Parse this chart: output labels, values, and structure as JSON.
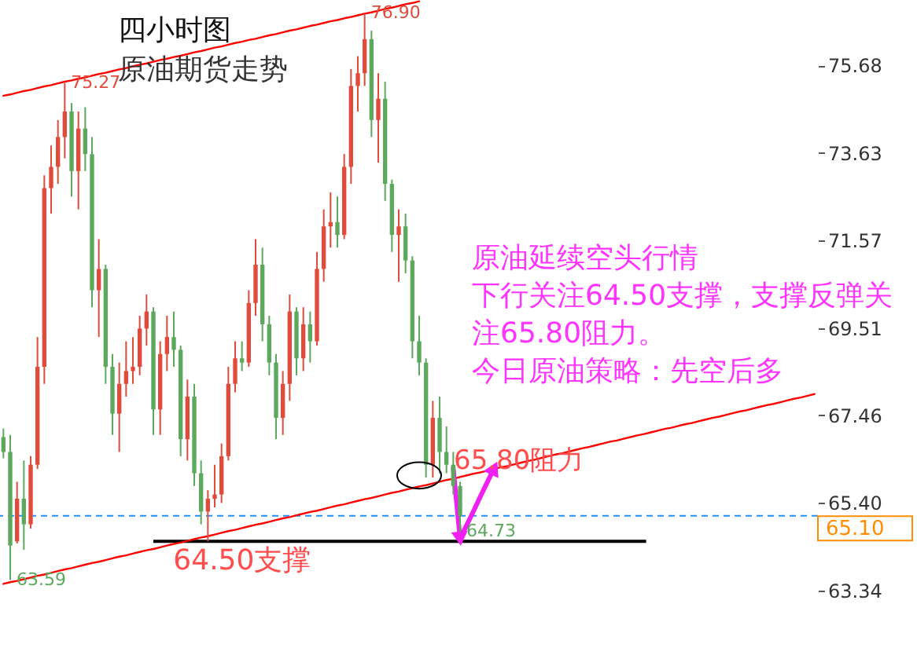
{
  "chart_data": {
    "type": "candlestick",
    "title": "四小时图",
    "subtitle": "原油期货走势",
    "categories": [
      null,
      null,
      null,
      null,
      null,
      null,
      null,
      null,
      null,
      null,
      null,
      null,
      null,
      null,
      null,
      null,
      null,
      null,
      null,
      null,
      null,
      null,
      null,
      null,
      null,
      null,
      null,
      null,
      null,
      null,
      null,
      null,
      null,
      null,
      null,
      null,
      null,
      null,
      null,
      null,
      null,
      null,
      null,
      null,
      null,
      null,
      null,
      null,
      null,
      null,
      null,
      null,
      null,
      null,
      null,
      null,
      null,
      null,
      null,
      null,
      null,
      null,
      null,
      null,
      null,
      null,
      null,
      null,
      null,
      null,
      null,
      null,
      null,
      null,
      null,
      null,
      null,
      null,
      null,
      null,
      null,
      null,
      null,
      null,
      null,
      null,
      null,
      null,
      null,
      null,
      null,
      null,
      null,
      null,
      null,
      null,
      null,
      null,
      null,
      null,
      null,
      null,
      null,
      null,
      null,
      null,
      null,
      null,
      null,
      null,
      null,
      null,
      null,
      null,
      null,
      null,
      null,
      null,
      null,
      null
    ],
    "ohlc": [
      [
        66.95,
        67.15,
        66.45,
        66.6
      ],
      [
        66.6,
        67.0,
        63.59,
        64.4
      ],
      [
        64.5,
        65.9,
        64.45,
        65.5
      ],
      [
        65.5,
        66.4,
        64.3,
        64.9
      ],
      [
        64.9,
        66.5,
        64.8,
        66.3
      ],
      [
        66.3,
        69.3,
        66.2,
        68.6
      ],
      [
        68.6,
        73.1,
        68.2,
        72.8
      ],
      [
        72.8,
        73.8,
        72.2,
        73.3
      ],
      [
        73.3,
        74.4,
        72.9,
        74.0
      ],
      [
        74.0,
        75.27,
        73.5,
        74.6
      ],
      [
        74.6,
        74.8,
        72.6,
        73.2
      ],
      [
        73.2,
        74.6,
        72.3,
        74.2
      ],
      [
        74.2,
        74.7,
        73.2,
        73.6
      ],
      [
        73.6,
        74.0,
        70.0,
        70.4
      ],
      [
        70.4,
        71.6,
        69.3,
        70.9
      ],
      [
        70.9,
        71.0,
        68.2,
        68.6
      ],
      [
        68.6,
        68.9,
        67.0,
        67.5
      ],
      [
        67.5,
        68.7,
        66.6,
        68.2
      ],
      [
        68.2,
        69.2,
        67.9,
        68.5
      ],
      [
        68.5,
        69.3,
        68.2,
        68.6
      ],
      [
        68.6,
        69.8,
        68.4,
        69.5
      ],
      [
        69.5,
        70.3,
        69.1,
        69.9
      ],
      [
        69.9,
        70.0,
        67.0,
        67.6
      ],
      [
        67.6,
        69.2,
        67.0,
        68.9
      ],
      [
        68.9,
        69.8,
        68.5,
        69.3
      ],
      [
        69.3,
        69.9,
        68.6,
        69.0
      ],
      [
        69.0,
        69.1,
        66.5,
        66.9
      ],
      [
        66.9,
        68.3,
        66.4,
        67.9
      ],
      [
        67.9,
        68.2,
        65.8,
        66.1
      ],
      [
        66.1,
        66.4,
        64.9,
        65.2
      ],
      [
        65.2,
        65.7,
        64.5,
        65.5
      ],
      [
        65.5,
        66.3,
        65.3,
        65.6
      ],
      [
        65.6,
        66.8,
        65.4,
        66.5
      ],
      [
        66.5,
        68.6,
        66.4,
        68.2
      ],
      [
        68.2,
        69.2,
        68.0,
        68.8
      ],
      [
        68.8,
        69.2,
        68.5,
        68.7
      ],
      [
        68.7,
        70.4,
        68.6,
        70.1
      ],
      [
        70.1,
        71.6,
        69.8,
        71.0
      ],
      [
        71.0,
        71.4,
        69.2,
        69.6
      ],
      [
        69.6,
        69.8,
        68.4,
        68.7
      ],
      [
        68.7,
        68.9,
        66.9,
        67.4
      ],
      [
        67.4,
        68.5,
        67.0,
        68.2
      ],
      [
        68.2,
        70.3,
        67.8,
        69.9
      ],
      [
        69.9,
        70.0,
        68.4,
        68.8
      ],
      [
        68.8,
        70.0,
        68.5,
        69.6
      ],
      [
        69.6,
        69.9,
        68.7,
        69.2
      ],
      [
        69.2,
        71.3,
        69.1,
        70.9
      ],
      [
        70.9,
        72.3,
        70.6,
        71.9
      ],
      [
        71.9,
        72.7,
        71.4,
        72.0
      ],
      [
        72.0,
        72.6,
        71.4,
        71.7
      ],
      [
        71.7,
        73.6,
        71.6,
        73.3
      ],
      [
        73.3,
        75.6,
        72.9,
        75.2
      ],
      [
        75.2,
        75.9,
        74.6,
        75.5
      ],
      [
        75.5,
        76.9,
        75.2,
        76.3
      ],
      [
        76.3,
        76.5,
        74.0,
        74.4
      ],
      [
        74.4,
        75.5,
        73.4,
        74.9
      ],
      [
        74.9,
        75.3,
        72.5,
        72.9
      ],
      [
        72.9,
        73.0,
        71.3,
        71.7
      ],
      [
        71.7,
        72.3,
        70.6,
        71.9
      ],
      [
        71.9,
        72.2,
        70.8,
        71.1
      ],
      [
        71.1,
        71.2,
        68.8,
        69.2
      ],
      [
        69.2,
        69.8,
        68.4,
        68.7
      ],
      [
        68.7,
        68.8,
        66.0,
        66.3
      ],
      [
        66.3,
        67.8,
        66.0,
        67.4
      ],
      [
        67.4,
        67.9,
        66.1,
        66.6
      ],
      [
        66.6,
        67.2,
        66.1,
        66.3
      ],
      [
        66.3,
        66.6,
        65.6,
        65.8
      ],
      [
        65.8,
        65.9,
        64.73,
        65.1
      ],
      null,
      null,
      null,
      null,
      null,
      null,
      null,
      null,
      null,
      null,
      null,
      null,
      null,
      null,
      null,
      null,
      null,
      null,
      null,
      null,
      null,
      null,
      null,
      null,
      null,
      null,
      null,
      null,
      null,
      null,
      null,
      null,
      null,
      null,
      null,
      null,
      null,
      null,
      null,
      null,
      null,
      null,
      null,
      null,
      null,
      null,
      null,
      null,
      null,
      null,
      null,
      null
    ],
    "colors": [
      "#5ca85c",
      "#5ca85c",
      "#e04b3c",
      "#5ca85c",
      "#e04b3c",
      "#e04b3c",
      "#e04b3c",
      "#e04b3c",
      "#e04b3c",
      "#e04b3c",
      "#5ca85c",
      "#e04b3c",
      "#5ca85c",
      "#5ca85c",
      "#e04b3c",
      "#5ca85c",
      "#5ca85c",
      "#e04b3c",
      "#e04b3c",
      "#e04b3c",
      "#e04b3c",
      "#e04b3c",
      "#5ca85c",
      "#e04b3c",
      "#e04b3c",
      "#5ca85c",
      "#5ca85c",
      "#e04b3c",
      "#5ca85c",
      "#5ca85c",
      "#e04b3c",
      "#e04b3c",
      "#e04b3c",
      "#e04b3c",
      "#e04b3c",
      "#5ca85c",
      "#e04b3c",
      "#e04b3c",
      "#5ca85c",
      "#5ca85c",
      "#5ca85c",
      "#e04b3c",
      "#e04b3c",
      "#5ca85c",
      "#e04b3c",
      "#5ca85c",
      "#e04b3c",
      "#e04b3c",
      "#e04b3c",
      "#5ca85c",
      "#e04b3c",
      "#e04b3c",
      "#e04b3c",
      "#e04b3c",
      "#5ca85c",
      "#e04b3c",
      "#5ca85c",
      "#5ca85c",
      "#e04b3c",
      "#5ca85c",
      "#5ca85c",
      "#5ca85c",
      "#5ca85c",
      "#e04b3c",
      "#5ca85c",
      "#5ca85c",
      "#5ca85c",
      "#5ca85c",
      null,
      null,
      null,
      null,
      null,
      null,
      null,
      null,
      null,
      null,
      null,
      null,
      null,
      null,
      null,
      null,
      null,
      null,
      null,
      null,
      null,
      null,
      null,
      null,
      null,
      null,
      null,
      null,
      null,
      null,
      null,
      null,
      null,
      null,
      null,
      null,
      null,
      null,
      null,
      null,
      null,
      null,
      null,
      null,
      null,
      null,
      null,
      null,
      null,
      null,
      null,
      null
    ],
    "value_labels": [
      null,
      "63.59",
      null,
      null,
      null,
      null,
      null,
      null,
      null,
      "75.27",
      null,
      null,
      null,
      null,
      null,
      null,
      null,
      null,
      null,
      null,
      null,
      null,
      null,
      null,
      null,
      null,
      null,
      null,
      null,
      null,
      null,
      null,
      null,
      null,
      null,
      null,
      null,
      null,
      null,
      null,
      null,
      null,
      null,
      null,
      null,
      null,
      null,
      null,
      null,
      null,
      null,
      null,
      null,
      "76.90",
      null,
      null,
      null,
      null,
      null,
      null,
      null,
      null,
      null,
      null,
      null,
      null,
      null,
      "64.73",
      null,
      null,
      null,
      null,
      null,
      null,
      null,
      null,
      null,
      null,
      null,
      null,
      null,
      null,
      null,
      null,
      null,
      null,
      null,
      null,
      null,
      null,
      null,
      null,
      null,
      null,
      null,
      null,
      null,
      null,
      null,
      null,
      null,
      null,
      null,
      null,
      null,
      null,
      null,
      null,
      null,
      null,
      null,
      null,
      null,
      null,
      null,
      null,
      null,
      null,
      null,
      null
    ],
    "series": [
      {
        "type": "line",
        "color": "#ff0000",
        "values": [
          74.97,
          75.0,
          75.04,
          75.08,
          75.11,
          75.15,
          75.19,
          75.22,
          75.26,
          75.3,
          75.33,
          75.37,
          75.4,
          75.44,
          75.48,
          75.51,
          75.55,
          75.59,
          75.62,
          75.66,
          75.7,
          75.73,
          75.77,
          75.81,
          75.84,
          75.88,
          75.91,
          75.95,
          75.99,
          76.02,
          76.06,
          76.1,
          76.13,
          76.17,
          76.21,
          76.24,
          76.28,
          76.31,
          76.35,
          76.39,
          76.42,
          76.46,
          76.5,
          76.53,
          76.57,
          76.61,
          76.64,
          76.68,
          76.72,
          76.75,
          76.79,
          76.82,
          76.86,
          76.9,
          76.93,
          76.97,
          77.01,
          77.04,
          77.08,
          77.12,
          77.15,
          77.19,
          null,
          null,
          null,
          null,
          null,
          null,
          null,
          null,
          null,
          null,
          null,
          null,
          null,
          null,
          null,
          null,
          null,
          null,
          null,
          null,
          null,
          null,
          null,
          null,
          null,
          null,
          null,
          null,
          null,
          null,
          null,
          null,
          null,
          null,
          null,
          null,
          null,
          null,
          null,
          null,
          null,
          null,
          null,
          null,
          null,
          null,
          null,
          null,
          null,
          null,
          null,
          null,
          null,
          null,
          null,
          null,
          null,
          null
        ]
      },
      {
        "type": "line",
        "color": "#ff0000",
        "values": [
          63.5,
          63.54,
          63.57,
          63.61,
          63.65,
          63.69,
          63.72,
          63.76,
          63.8,
          63.84,
          63.87,
          63.91,
          63.95,
          63.99,
          64.02,
          64.06,
          64.1,
          64.14,
          64.17,
          64.21,
          64.25,
          64.29,
          64.32,
          64.36,
          64.4,
          64.44,
          64.47,
          64.51,
          64.55,
          64.59,
          64.62,
          64.66,
          64.7,
          64.74,
          64.77,
          64.81,
          64.85,
          64.89,
          64.92,
          64.96,
          65.0,
          65.04,
          65.07,
          65.11,
          65.15,
          65.19,
          65.22,
          65.26,
          65.3,
          65.34,
          65.37,
          65.41,
          65.45,
          65.49,
          65.52,
          65.56,
          65.6,
          65.64,
          65.67,
          65.71,
          65.75,
          65.79,
          65.82,
          65.86,
          65.9,
          65.94,
          65.97,
          66.01,
          66.05,
          66.09,
          66.12,
          66.16,
          66.2,
          66.24,
          66.27,
          66.31,
          66.35,
          66.39,
          66.42,
          66.46,
          66.5,
          66.54,
          66.57,
          66.61,
          66.65,
          66.69,
          66.72,
          66.76,
          66.8,
          66.84,
          66.87,
          66.91,
          66.95,
          66.99,
          67.02,
          67.06,
          67.1,
          67.14,
          67.17,
          67.21,
          67.25,
          67.28,
          67.32,
          67.36,
          67.4,
          67.43,
          67.47,
          67.51,
          67.55,
          67.58,
          67.62,
          67.66,
          67.7,
          67.73,
          67.77,
          67.81,
          67.85,
          67.88,
          67.92,
          67.96
        ]
      },
      {
        "type": "line",
        "color": "#f020f0",
        "values": [
          null,
          null,
          null,
          null,
          null,
          null,
          null,
          null,
          null,
          null,
          null,
          null,
          null,
          null,
          null,
          null,
          null,
          null,
          null,
          null,
          null,
          null,
          null,
          null,
          null,
          null,
          null,
          null,
          null,
          null,
          null,
          null,
          null,
          null,
          null,
          null,
          null,
          null,
          null,
          null,
          null,
          null,
          null,
          null,
          null,
          null,
          null,
          null,
          null,
          null,
          null,
          null,
          null,
          null,
          null,
          null,
          null,
          null,
          null,
          null,
          null,
          null,
          null,
          null,
          null,
          null,
          66.22,
          64.56,
          64.89,
          65.22,
          65.56,
          65.89,
          66.22,
          null,
          null,
          null,
          null,
          null,
          null,
          null,
          null,
          null,
          null,
          null,
          null,
          null,
          null,
          null,
          null,
          null,
          null,
          null,
          null,
          null,
          null,
          null,
          null,
          null,
          null,
          null,
          null,
          null,
          null,
          null,
          null,
          null,
          null,
          null,
          null,
          null,
          null,
          null,
          null,
          null,
          null,
          null,
          null,
          null,
          null,
          null
        ]
      }
    ],
    "ylim": [
      61.57,
      77.22
    ],
    "yticks": [
      63.34,
      {
        "value": 65.4,
        "label": "65.40"
      },
      67.46,
      69.51,
      71.57,
      73.63,
      75.68
    ],
    "tick_labels": "y",
    "ref_lines": [
      {
        "axis": "y",
        "value": 65.1,
        "label": "65.10",
        "color": "#1e90ff",
        "line_style": "dashed"
      },
      {
        "axis": "y",
        "value": 64.5,
        "label": "64.50支撑",
        "color": "#000000"
      }
    ],
    "annotations": [
      "65.80阻力",
      "原油延续空头行情",
      "下行关注64.50支撑，支撑反弹关",
      "注65.80阻力。",
      "今日原油策略：先空后多"
    ]
  }
}
